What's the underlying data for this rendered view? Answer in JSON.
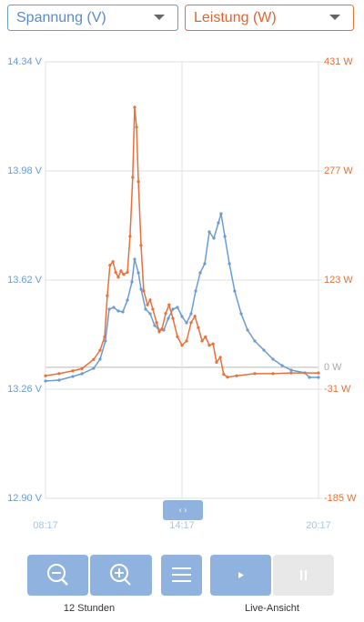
{
  "chart_data": {
    "type": "line",
    "xlim": [
      497,
      1217
    ],
    "xticks": [
      {
        "value": 497,
        "label": "08:17"
      },
      {
        "value": 857,
        "label": "14:17"
      },
      {
        "value": 1217,
        "label": "20:17"
      }
    ],
    "ylim": [
      12.9,
      14.34
    ],
    "yticks": [
      {
        "value": 12.9,
        "label": "12.90 V"
      },
      {
        "value": 13.26,
        "label": "13.26 V"
      },
      {
        "value": 13.62,
        "label": "13.62 V"
      },
      {
        "value": 13.98,
        "label": "13.98 V"
      },
      {
        "value": 14.34,
        "label": "14.34 V"
      }
    ],
    "y2lim": [
      -185,
      431
    ],
    "y2ticks": [
      {
        "value": -185,
        "label": "-185 W"
      },
      {
        "value": -31,
        "label": "-31 W"
      },
      {
        "value": 123,
        "label": "123 W"
      },
      {
        "value": 277,
        "label": "277 W"
      },
      {
        "value": 431,
        "label": "431 W"
      }
    ],
    "zero_line": {
      "value": 0,
      "label": "0 W"
    },
    "grid": true,
    "series": [
      {
        "name": "Spannung (V)",
        "color": "#6b9bd2",
        "x": [
          497,
          533,
          569,
          593,
          624,
          641,
          655,
          665,
          677,
          689,
          701,
          713,
          725,
          732,
          742,
          749,
          761,
          773,
          785,
          797,
          809,
          821,
          833,
          845,
          857,
          869,
          881,
          893,
          905,
          917,
          929,
          941,
          953,
          960,
          970,
          982,
          996,
          1013,
          1030,
          1049,
          1073,
          1097,
          1121,
          1145,
          1181,
          1193,
          1217
        ],
        "values": [
          13.287,
          13.29,
          13.302,
          13.311,
          13.329,
          13.359,
          13.419,
          13.524,
          13.53,
          13.518,
          13.515,
          13.554,
          13.614,
          13.689,
          13.644,
          13.59,
          13.524,
          13.509,
          13.47,
          13.455,
          13.455,
          13.494,
          13.524,
          13.53,
          13.5,
          13.479,
          13.509,
          13.584,
          13.644,
          13.674,
          13.779,
          13.758,
          13.809,
          13.839,
          13.764,
          13.674,
          13.584,
          13.509,
          13.455,
          13.419,
          13.389,
          13.359,
          13.338,
          13.323,
          13.314,
          13.299,
          13.299
        ]
      },
      {
        "name": "Leistung (W)",
        "color": "#e8703a",
        "axis": "y2",
        "x": [
          497,
          533,
          569,
          593,
          624,
          641,
          653,
          660,
          667,
          675,
          682,
          689,
          696,
          703,
          713,
          720,
          727,
          732,
          737,
          742,
          749,
          756,
          766,
          773,
          780,
          790,
          797,
          804,
          814,
          823,
          833,
          845,
          857,
          869,
          881,
          891,
          900,
          910,
          919,
          929,
          939,
          948,
          958,
          967,
          977,
          1001,
          1049,
          1097,
          1145,
          1217
        ],
        "values": [
          -12,
          -9,
          -5,
          -2,
          11,
          24,
          43,
          101,
          144,
          149,
          134,
          127,
          136,
          131,
          134,
          185,
          268,
          367,
          339,
          262,
          172,
          108,
          88,
          95,
          82,
          63,
          50,
          54,
          76,
          88,
          69,
          43,
          31,
          37,
          63,
          72,
          56,
          37,
          43,
          31,
          33,
          7,
          14,
          -10,
          -14,
          -12,
          -9,
          -9,
          -8,
          -8
        ]
      }
    ]
  },
  "ui": {
    "zoom_label": "12 Stunden",
    "live_label": "Live-Ansicht"
  }
}
